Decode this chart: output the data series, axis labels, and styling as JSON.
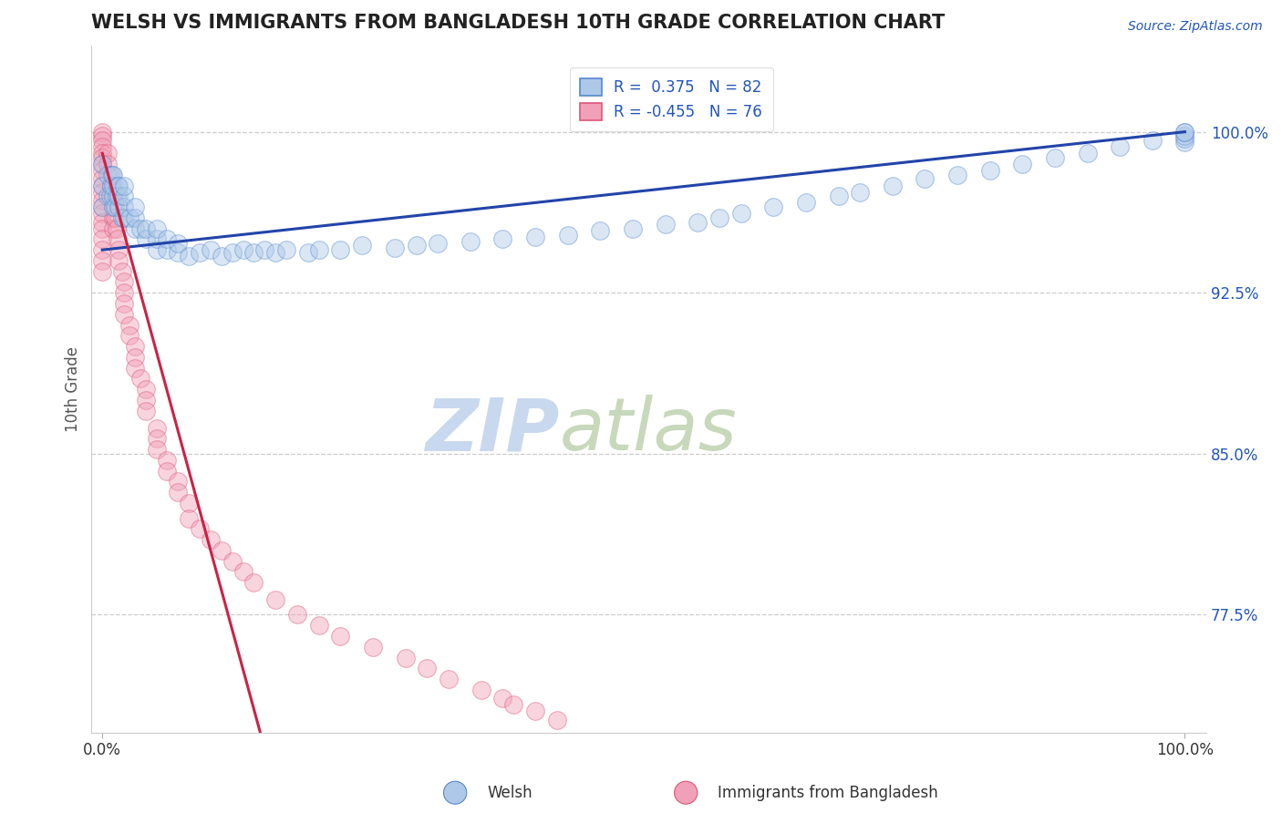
{
  "title": "WELSH VS IMMIGRANTS FROM BANGLADESH 10TH GRADE CORRELATION CHART",
  "source_text": "Source: ZipAtlas.com",
  "ylabel": "10th Grade",
  "y_ticks": [
    0.775,
    0.85,
    0.925,
    1.0
  ],
  "y_tick_labels": [
    "77.5%",
    "85.0%",
    "92.5%",
    "100.0%"
  ],
  "x_lim": [
    -0.01,
    1.02
  ],
  "y_lim": [
    0.72,
    1.04
  ],
  "welsh_R": 0.375,
  "welsh_N": 82,
  "bangladesh_R": -0.455,
  "bangladesh_N": 76,
  "welsh_color": "#adc8e8",
  "welsh_edge_color": "#5588cc",
  "bangladesh_color": "#f0a0b8",
  "bangladesh_edge_color": "#dd5577",
  "welsh_line_color": "#2244aa",
  "bangladesh_line_color": "#cc2244",
  "legend_text_color": "#2255bb",
  "title_color": "#222222",
  "source_color": "#2255bb",
  "watermark_zip_color": "#c8d8ee",
  "watermark_atlas_color": "#c8d8bb",
  "marker_size": 200,
  "alpha": 0.45,
  "welsh_line_intercept": 0.945,
  "welsh_line_slope": 0.055,
  "bangladesh_line_intercept": 0.99,
  "bangladesh_line_slope": -1.85,
  "welsh_x": [
    0.0,
    0.0,
    0.0,
    0.005,
    0.005,
    0.007,
    0.008,
    0.009,
    0.01,
    0.01,
    0.01,
    0.01,
    0.012,
    0.013,
    0.014,
    0.015,
    0.015,
    0.015,
    0.018,
    0.02,
    0.02,
    0.02,
    0.02,
    0.025,
    0.03,
    0.03,
    0.03,
    0.035,
    0.04,
    0.04,
    0.05,
    0.05,
    0.05,
    0.06,
    0.06,
    0.07,
    0.07,
    0.08,
    0.09,
    0.1,
    0.11,
    0.12,
    0.13,
    0.14,
    0.15,
    0.16,
    0.17,
    0.19,
    0.2,
    0.22,
    0.24,
    0.27,
    0.29,
    0.31,
    0.34,
    0.37,
    0.4,
    0.43,
    0.46,
    0.49,
    0.52,
    0.55,
    0.57,
    0.59,
    0.62,
    0.65,
    0.68,
    0.7,
    0.73,
    0.76,
    0.79,
    0.82,
    0.85,
    0.88,
    0.91,
    0.94,
    0.97,
    1.0,
    1.0,
    1.0,
    1.0,
    1.0
  ],
  "welsh_y": [
    0.965,
    0.975,
    0.985,
    0.97,
    0.98,
    0.97,
    0.975,
    0.98,
    0.965,
    0.97,
    0.975,
    0.98,
    0.965,
    0.97,
    0.975,
    0.965,
    0.97,
    0.975,
    0.96,
    0.96,
    0.965,
    0.97,
    0.975,
    0.96,
    0.955,
    0.96,
    0.965,
    0.955,
    0.95,
    0.955,
    0.945,
    0.95,
    0.955,
    0.945,
    0.95,
    0.944,
    0.948,
    0.942,
    0.944,
    0.945,
    0.942,
    0.944,
    0.945,
    0.944,
    0.945,
    0.944,
    0.945,
    0.944,
    0.945,
    0.945,
    0.947,
    0.946,
    0.947,
    0.948,
    0.949,
    0.95,
    0.951,
    0.952,
    0.954,
    0.955,
    0.957,
    0.958,
    0.96,
    0.962,
    0.965,
    0.967,
    0.97,
    0.972,
    0.975,
    0.978,
    0.98,
    0.982,
    0.985,
    0.988,
    0.99,
    0.993,
    0.996,
    0.995,
    0.997,
    0.998,
    1.0,
    1.0
  ],
  "bangladesh_x": [
    0.0,
    0.0,
    0.0,
    0.0,
    0.0,
    0.0,
    0.0,
    0.0,
    0.0,
    0.0,
    0.0,
    0.0,
    0.0,
    0.0,
    0.0,
    0.0,
    0.0,
    0.0,
    0.0,
    0.0,
    0.005,
    0.005,
    0.007,
    0.008,
    0.009,
    0.01,
    0.01,
    0.01,
    0.01,
    0.012,
    0.013,
    0.014,
    0.015,
    0.015,
    0.018,
    0.02,
    0.02,
    0.02,
    0.02,
    0.025,
    0.025,
    0.03,
    0.03,
    0.03,
    0.035,
    0.04,
    0.04,
    0.04,
    0.05,
    0.05,
    0.05,
    0.06,
    0.06,
    0.07,
    0.07,
    0.08,
    0.08,
    0.09,
    0.1,
    0.11,
    0.12,
    0.13,
    0.14,
    0.16,
    0.18,
    0.2,
    0.22,
    0.25,
    0.28,
    0.3,
    0.32,
    0.35,
    0.37,
    0.38,
    0.4,
    0.42
  ],
  "bangladesh_y": [
    1.0,
    0.998,
    0.996,
    0.993,
    0.99,
    0.988,
    0.985,
    0.982,
    0.978,
    0.975,
    0.972,
    0.968,
    0.965,
    0.962,
    0.958,
    0.955,
    0.95,
    0.945,
    0.94,
    0.935,
    0.99,
    0.985,
    0.98,
    0.975,
    0.97,
    0.97,
    0.965,
    0.96,
    0.955,
    0.96,
    0.955,
    0.95,
    0.945,
    0.94,
    0.935,
    0.93,
    0.925,
    0.92,
    0.915,
    0.91,
    0.905,
    0.9,
    0.895,
    0.89,
    0.885,
    0.88,
    0.875,
    0.87,
    0.862,
    0.857,
    0.852,
    0.847,
    0.842,
    0.837,
    0.832,
    0.827,
    0.82,
    0.815,
    0.81,
    0.805,
    0.8,
    0.795,
    0.79,
    0.782,
    0.775,
    0.77,
    0.765,
    0.76,
    0.755,
    0.75,
    0.745,
    0.74,
    0.736,
    0.733,
    0.73,
    0.726
  ]
}
